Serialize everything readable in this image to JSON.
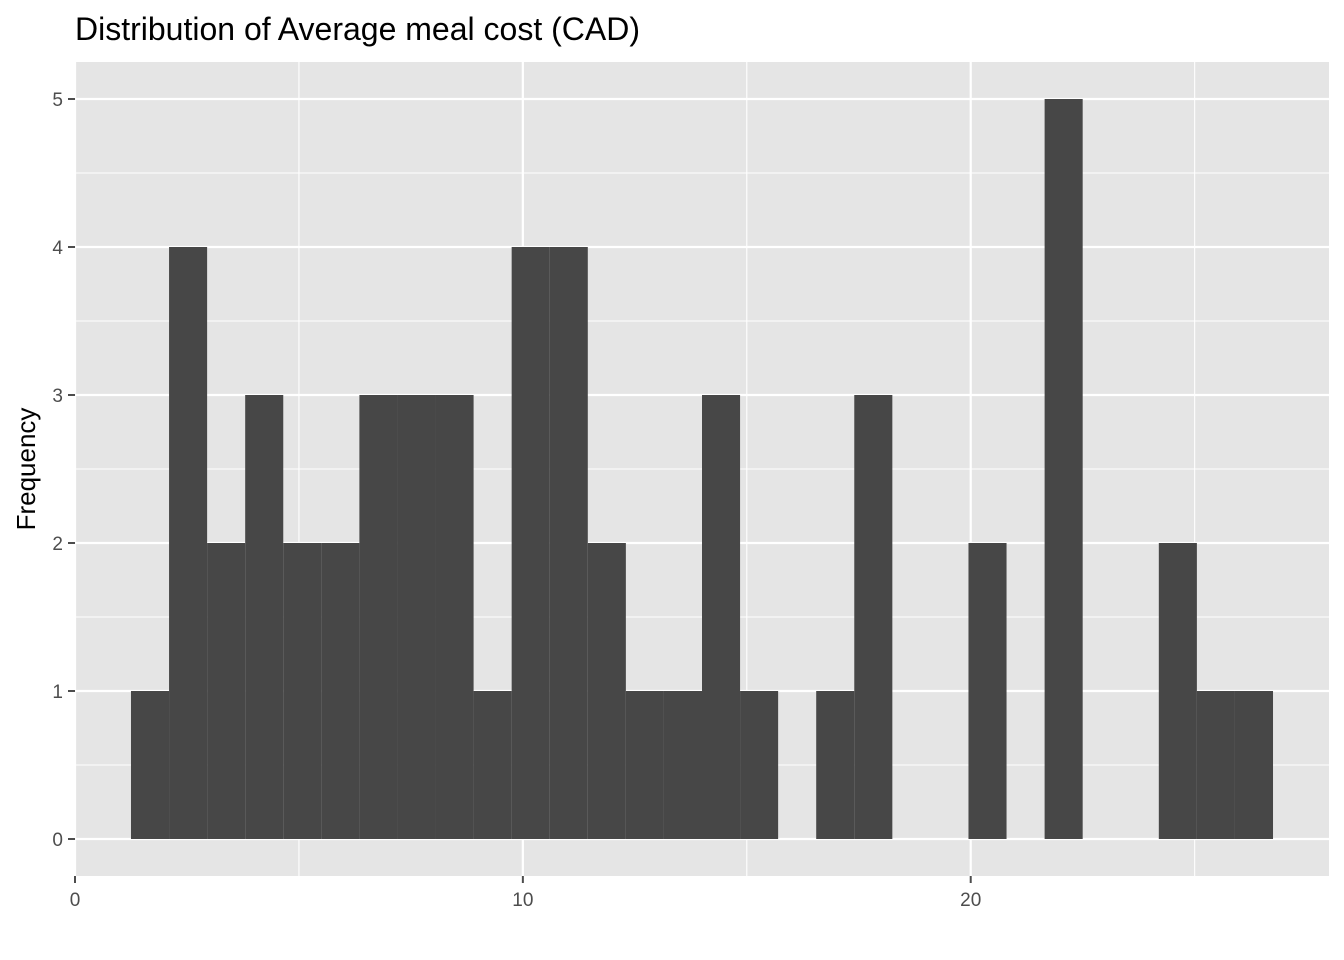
{
  "chart_data": {
    "type": "bar",
    "title": "Distribution of Average meal cost (CAD)",
    "xlabel": "",
    "ylabel": "Frequency",
    "x_ticks": [
      0,
      10,
      20
    ],
    "y_ticks": [
      0,
      1,
      2,
      3,
      4,
      5
    ],
    "xlim": [
      0,
      28.0
    ],
    "ylim": [
      -0.25,
      5.25
    ],
    "bin_width": 0.85,
    "bins": [
      {
        "x0": 1.25,
        "x1": 2.1,
        "count": 1
      },
      {
        "x0": 2.1,
        "x1": 2.95,
        "count": 4
      },
      {
        "x0": 2.95,
        "x1": 3.8,
        "count": 2
      },
      {
        "x0": 3.8,
        "x1": 4.65,
        "count": 3
      },
      {
        "x0": 4.65,
        "x1": 5.5,
        "count": 2
      },
      {
        "x0": 5.5,
        "x1": 6.35,
        "count": 2
      },
      {
        "x0": 6.35,
        "x1": 7.2,
        "count": 3
      },
      {
        "x0": 7.2,
        "x1": 8.05,
        "count": 3
      },
      {
        "x0": 8.05,
        "x1": 8.9,
        "count": 3
      },
      {
        "x0": 8.9,
        "x1": 9.75,
        "count": 1
      },
      {
        "x0": 9.75,
        "x1": 10.6,
        "count": 4
      },
      {
        "x0": 10.6,
        "x1": 11.45,
        "count": 4
      },
      {
        "x0": 11.45,
        "x1": 12.3,
        "count": 2
      },
      {
        "x0": 12.3,
        "x1": 13.15,
        "count": 1
      },
      {
        "x0": 13.15,
        "x1": 14.0,
        "count": 1
      },
      {
        "x0": 14.0,
        "x1": 14.85,
        "count": 3
      },
      {
        "x0": 14.85,
        "x1": 15.7,
        "count": 1
      },
      {
        "x0": 15.7,
        "x1": 16.55,
        "count": 0
      },
      {
        "x0": 16.55,
        "x1": 17.4,
        "count": 1
      },
      {
        "x0": 17.4,
        "x1": 18.25,
        "count": 3
      },
      {
        "x0": 18.25,
        "x1": 19.1,
        "count": 0
      },
      {
        "x0": 19.1,
        "x1": 19.95,
        "count": 0
      },
      {
        "x0": 19.95,
        "x1": 20.8,
        "count": 2
      },
      {
        "x0": 20.8,
        "x1": 21.65,
        "count": 0
      },
      {
        "x0": 21.65,
        "x1": 22.5,
        "count": 5
      },
      {
        "x0": 22.5,
        "x1": 23.35,
        "count": 0
      },
      {
        "x0": 23.35,
        "x1": 24.2,
        "count": 0
      },
      {
        "x0": 24.2,
        "x1": 25.05,
        "count": 2
      },
      {
        "x0": 25.05,
        "x1": 25.9,
        "count": 1
      },
      {
        "x0": 25.9,
        "x1": 26.75,
        "count": 1
      }
    ],
    "grid": true,
    "legend": "none",
    "colors": {
      "panel": "#e5e5e5",
      "bar": "#474747",
      "grid_major": "#ffffff",
      "tick": "#4d4d4d"
    }
  }
}
